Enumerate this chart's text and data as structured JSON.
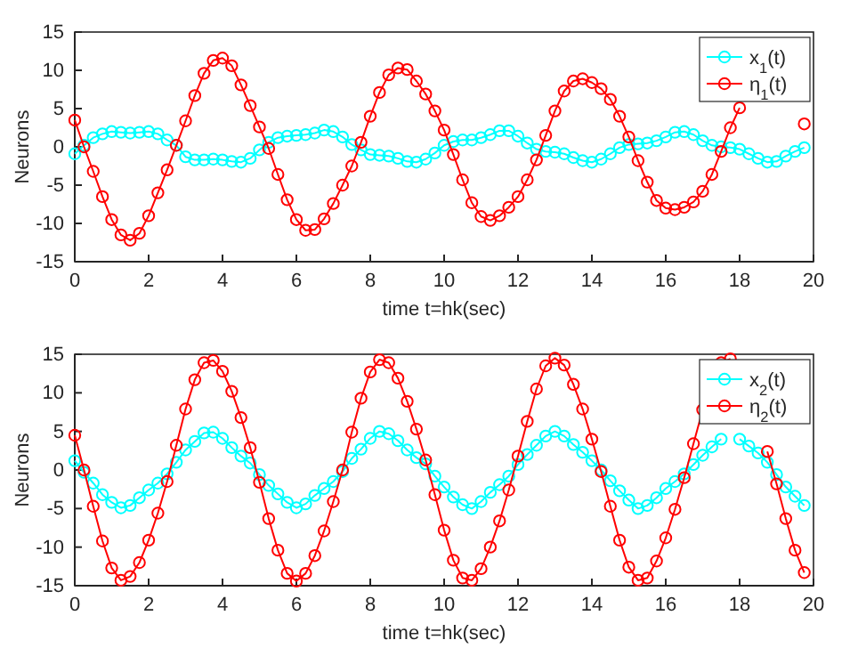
{
  "chart_data": [
    {
      "type": "line",
      "xlabel": "time t=hk(sec)",
      "ylabel": "Neurons",
      "xlim": [
        0,
        20
      ],
      "ylim": [
        -15,
        15
      ],
      "xticks": [
        0,
        2,
        4,
        6,
        8,
        10,
        12,
        14,
        16,
        18,
        20
      ],
      "yticks": [
        -15,
        -10,
        -5,
        0,
        5,
        10,
        15
      ],
      "grid": false,
      "legend": "top right",
      "marker": "circle",
      "line_style": "solid",
      "x": [
        0,
        0.25,
        0.5,
        0.75,
        1,
        1.25,
        1.5,
        1.75,
        2,
        2.25,
        2.5,
        2.75,
        3,
        3.25,
        3.5,
        3.75,
        4,
        4.25,
        4.5,
        4.75,
        5,
        5.25,
        5.5,
        5.75,
        6,
        6.25,
        6.5,
        6.75,
        7,
        7.25,
        7.5,
        7.75,
        8,
        8.25,
        8.5,
        8.75,
        9,
        9.25,
        9.5,
        9.75,
        10,
        10.25,
        10.5,
        10.75,
        11,
        11.25,
        11.5,
        11.75,
        12,
        12.25,
        12.5,
        12.75,
        13,
        13.25,
        13.5,
        13.75,
        14,
        14.25,
        14.5,
        14.75,
        15,
        15.25,
        15.5,
        15.75,
        16,
        16.25,
        16.5,
        16.75,
        17,
        17.25,
        17.5,
        17.75,
        18,
        18.25,
        18.5,
        18.75,
        19,
        19.25,
        19.5,
        19.75
      ],
      "series": [
        {
          "name": "x$_{1}$(t)",
          "color": "#00ffff",
          "values": [
            -0.9,
            0.2,
            1.2,
            1.7,
            2,
            1.9,
            1.8,
            1.9,
            2,
            1.7,
            0.9,
            0.2,
            -1.3,
            -1.7,
            -1.7,
            -1.6,
            -1.7,
            -1.9,
            -2,
            -1.5,
            -0.4,
            0.6,
            1.2,
            1.4,
            1.5,
            1.6,
            1.8,
            2.2,
            2,
            1.3,
            0.3,
            -0.4,
            -1,
            -1.1,
            -1.2,
            -1.5,
            -1.9,
            -2,
            -1.6,
            -0.8,
            0.2,
            0.7,
            0.9,
            0.9,
            1.2,
            1.6,
            2.1,
            2.1,
            1.4,
            0.5,
            -0.3,
            -0.6,
            -0.7,
            -0.9,
            -1.4,
            -1.8,
            -2,
            -1.6,
            -0.9,
            -0.1,
            0.3,
            0.4,
            0.5,
            0.8,
            1.3,
            1.9,
            2,
            1.6,
            0.8,
            0.2,
            0,
            -0.1,
            -0.3,
            -0.9,
            -1.5,
            -2,
            -1.9,
            -1.2,
            -0.6,
            -0.1
          ]
        },
        {
          "name": "η$_{1}$(t)",
          "color": "#ff0000",
          "values": [
            3.5,
            0,
            -3.2,
            -6.5,
            -9.5,
            -11.5,
            -12.2,
            -11.3,
            -9,
            -6,
            -3,
            0.2,
            3.4,
            6.7,
            9.6,
            11.3,
            11.6,
            10.6,
            8.1,
            5.4,
            2.6,
            -0.2,
            -3.6,
            -6.9,
            -9.5,
            -10.9,
            -10.8,
            -9.4,
            -7.4,
            -5,
            -2.5,
            0.6,
            4,
            7.1,
            9.4,
            10.3,
            10.1,
            8.6,
            6.9,
            4.7,
            2.2,
            -1,
            -4.3,
            -7.3,
            -9.1,
            -9.6,
            -9,
            -7.9,
            -6.5,
            -4.3,
            -1.7,
            1.5,
            4.7,
            7.3,
            8.6,
            8.9,
            8.4,
            7.6,
            6.2,
            4,
            1.3,
            -1.8,
            -4.6,
            -7,
            -8,
            -8.2,
            -7.9,
            -7.2,
            -5.8,
            -3.6,
            -0.6,
            2.5,
            5.1,
            null,
            null,
            null,
            null,
            null,
            null,
            3
          ]
        }
      ]
    },
    {
      "type": "line",
      "xlabel": "time t=hk(sec)",
      "ylabel": "Neurons",
      "xlim": [
        0,
        20
      ],
      "ylim": [
        -15,
        15
      ],
      "xticks": [
        0,
        2,
        4,
        6,
        8,
        10,
        12,
        14,
        16,
        18,
        20
      ],
      "yticks": [
        -15,
        -10,
        -5,
        0,
        5,
        10,
        15
      ],
      "grid": false,
      "legend": "top right",
      "marker": "circle",
      "line_style": "solid",
      "x": [
        0,
        0.25,
        0.5,
        0.75,
        1,
        1.25,
        1.5,
        1.75,
        2,
        2.25,
        2.5,
        2.75,
        3,
        3.25,
        3.5,
        3.75,
        4,
        4.25,
        4.5,
        4.75,
        5,
        5.25,
        5.5,
        5.75,
        6,
        6.25,
        6.5,
        6.75,
        7,
        7.25,
        7.5,
        7.75,
        8,
        8.25,
        8.5,
        8.75,
        9,
        9.25,
        9.5,
        9.75,
        10,
        10.25,
        10.5,
        10.75,
        11,
        11.25,
        11.5,
        11.75,
        12,
        12.25,
        12.5,
        12.75,
        13,
        13.25,
        13.5,
        13.75,
        14,
        14.25,
        14.5,
        14.75,
        15,
        15.25,
        15.5,
        15.75,
        16,
        16.25,
        16.5,
        16.75,
        17,
        17.25,
        17.5,
        17.75,
        18,
        18.25,
        18.5,
        18.75,
        19,
        19.25,
        19.5,
        19.75
      ],
      "series": [
        {
          "name": "x$_{2}$(t)",
          "color": "#00ffff",
          "values": [
            1.2,
            -0.3,
            -1.7,
            -3.2,
            -4.2,
            -4.9,
            -4.6,
            -3.6,
            -2.6,
            -1.7,
            -0.5,
            1,
            2.6,
            3.7,
            4.8,
            4.9,
            4.1,
            2.9,
            1.8,
            0.9,
            -0.6,
            -2,
            -3.1,
            -4.2,
            -4.9,
            -4.4,
            -3.3,
            -2.4,
            -1.5,
            -0.2,
            1.5,
            2.7,
            4.1,
            5,
            4.7,
            3.8,
            2.6,
            1.6,
            0.8,
            -0.8,
            -2.2,
            -3.5,
            -4.5,
            -5,
            -4.1,
            -2.9,
            -1.9,
            -0.8,
            0.7,
            2,
            3.2,
            4.4,
            5,
            4.4,
            3.3,
            2.3,
            1.2,
            0,
            -1.4,
            -2.7,
            -3.9,
            -5,
            -4.6,
            -3.6,
            -2.4,
            -1.5,
            -0.5,
            0.7,
            1.9,
            3,
            4,
            null,
            4,
            3.1,
            2.2,
            1,
            -0.6,
            -2.2,
            -3.4,
            -4.6
          ]
        },
        {
          "name": "η$_{2}$(t)",
          "color": "#ff0000",
          "values": [
            4.5,
            0,
            -4.7,
            -9.2,
            -12.7,
            -14.3,
            -13.8,
            -12,
            -9.1,
            -5.6,
            -1.5,
            3.2,
            7.9,
            11.7,
            13.9,
            14.2,
            12.8,
            10.2,
            6.8,
            2.9,
            -1.6,
            -6.3,
            -10.4,
            -13.4,
            -14.4,
            -13.4,
            -11.1,
            -7.9,
            -4.1,
            0,
            4.9,
            9.3,
            12.7,
            14.3,
            13.9,
            11.9,
            8.9,
            5.3,
            1.3,
            -3.2,
            -7.8,
            -11.7,
            -14,
            -14.3,
            -12.8,
            -10,
            -6.6,
            -2.6,
            1.8,
            6.3,
            10.5,
            13.5,
            14.5,
            13.6,
            11.1,
            7.9,
            4,
            -0.2,
            -4.7,
            -9.1,
            -12.6,
            -14.3,
            -14,
            -11.8,
            -8.8,
            -5.1,
            -1,
            3.4,
            7.8,
            null,
            13.9,
            14.4,
            null,
            null,
            null,
            2.4,
            -1.8,
            -6.3,
            -10.4,
            -13.3
          ]
        }
      ]
    }
  ]
}
